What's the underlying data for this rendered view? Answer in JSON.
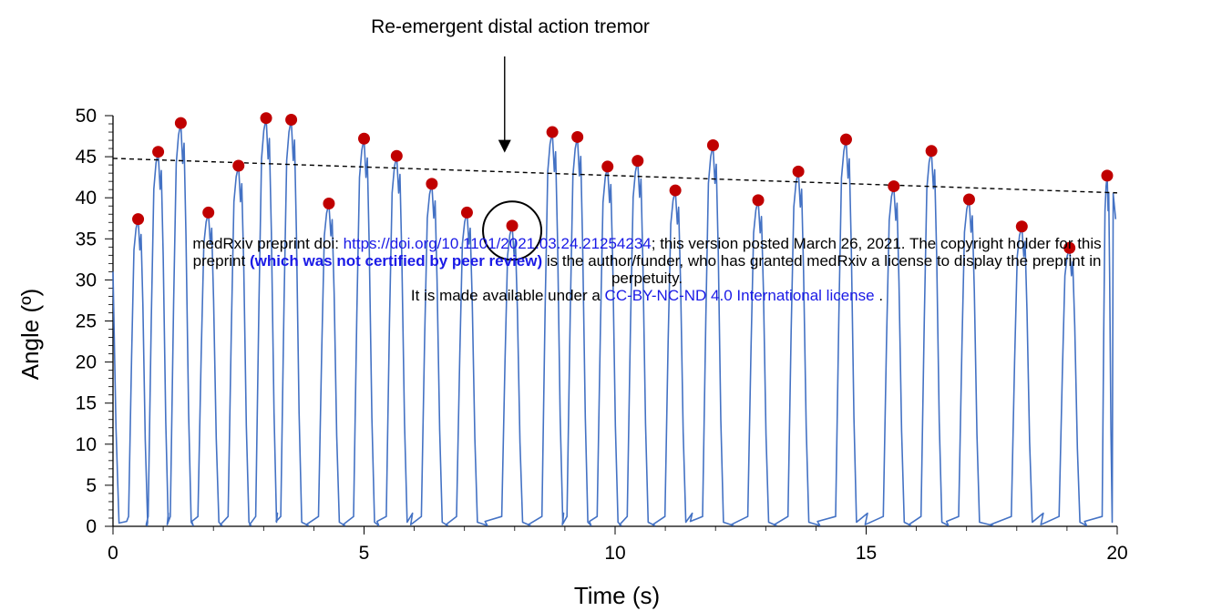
{
  "chart_data": {
    "type": "line",
    "title": "",
    "xlabel": "Time (s)",
    "ylabel": "Angle (º)",
    "xlim": [
      0,
      20
    ],
    "ylim": [
      0,
      50
    ],
    "xticks": [
      0,
      5,
      10,
      15,
      20
    ],
    "yticks": [
      0,
      5,
      10,
      15,
      20,
      25,
      30,
      35,
      40,
      45,
      50
    ],
    "grid": false,
    "legend": "none",
    "series": [
      {
        "kind": "oscillation-trace",
        "color": "#4472c4",
        "peaks": [
          {
            "x": 0.5,
            "y": 37.4
          },
          {
            "x": 0.9,
            "y": 45.6
          },
          {
            "x": 1.35,
            "y": 49.1
          },
          {
            "x": 1.9,
            "y": 38.2
          },
          {
            "x": 2.5,
            "y": 43.9
          },
          {
            "x": 3.05,
            "y": 49.7
          },
          {
            "x": 3.55,
            "y": 49.5
          },
          {
            "x": 4.3,
            "y": 39.3
          },
          {
            "x": 5.0,
            "y": 47.2
          },
          {
            "x": 5.65,
            "y": 45.1
          },
          {
            "x": 6.35,
            "y": 41.7
          },
          {
            "x": 7.05,
            "y": 38.2
          },
          {
            "x": 7.95,
            "y": 36.6
          },
          {
            "x": 8.75,
            "y": 48.0
          },
          {
            "x": 9.25,
            "y": 47.4
          },
          {
            "x": 9.85,
            "y": 43.8
          },
          {
            "x": 10.45,
            "y": 44.5
          },
          {
            "x": 11.2,
            "y": 40.9
          },
          {
            "x": 11.95,
            "y": 46.4
          },
          {
            "x": 12.85,
            "y": 39.7
          },
          {
            "x": 13.65,
            "y": 43.2
          },
          {
            "x": 14.6,
            "y": 47.1
          },
          {
            "x": 15.55,
            "y": 41.4
          },
          {
            "x": 16.3,
            "y": 45.7
          },
          {
            "x": 17.05,
            "y": 39.8
          },
          {
            "x": 18.1,
            "y": 36.5
          },
          {
            "x": 19.05,
            "y": 33.9
          },
          {
            "x": 19.8,
            "y": 42.7
          }
        ]
      },
      {
        "kind": "peak-markers",
        "color": "#c00000"
      },
      {
        "kind": "linear-trend",
        "style": "dashed",
        "color": "#000000",
        "x": [
          0,
          20
        ],
        "y": [
          44.8,
          40.6
        ]
      }
    ],
    "annotation": {
      "text": "Re-emergent distal action tremor",
      "arrow_target": {
        "x": 7.8,
        "y": 45.5
      },
      "circle_center": {
        "x": 7.95,
        "y": 36.0
      }
    }
  },
  "notice": {
    "line1_pre": "medRxiv preprint doi: ",
    "line1_link": "https://doi.org/10.1101/2021.03.24.21254234",
    "line1_post": "; this version posted March 26, 2021. The copyright holder for this",
    "line2_pre": "preprint ",
    "line2_bold": "(which was not certified by peer review)",
    "line2_post": " is the author/funder, who has granted medRxiv a license to display the preprint in",
    "line3": "perpetuity.",
    "line4_pre": "It is made available under a ",
    "line4_link": "CC-BY-NC-ND 4.0 International license",
    "line4_post": " ."
  }
}
